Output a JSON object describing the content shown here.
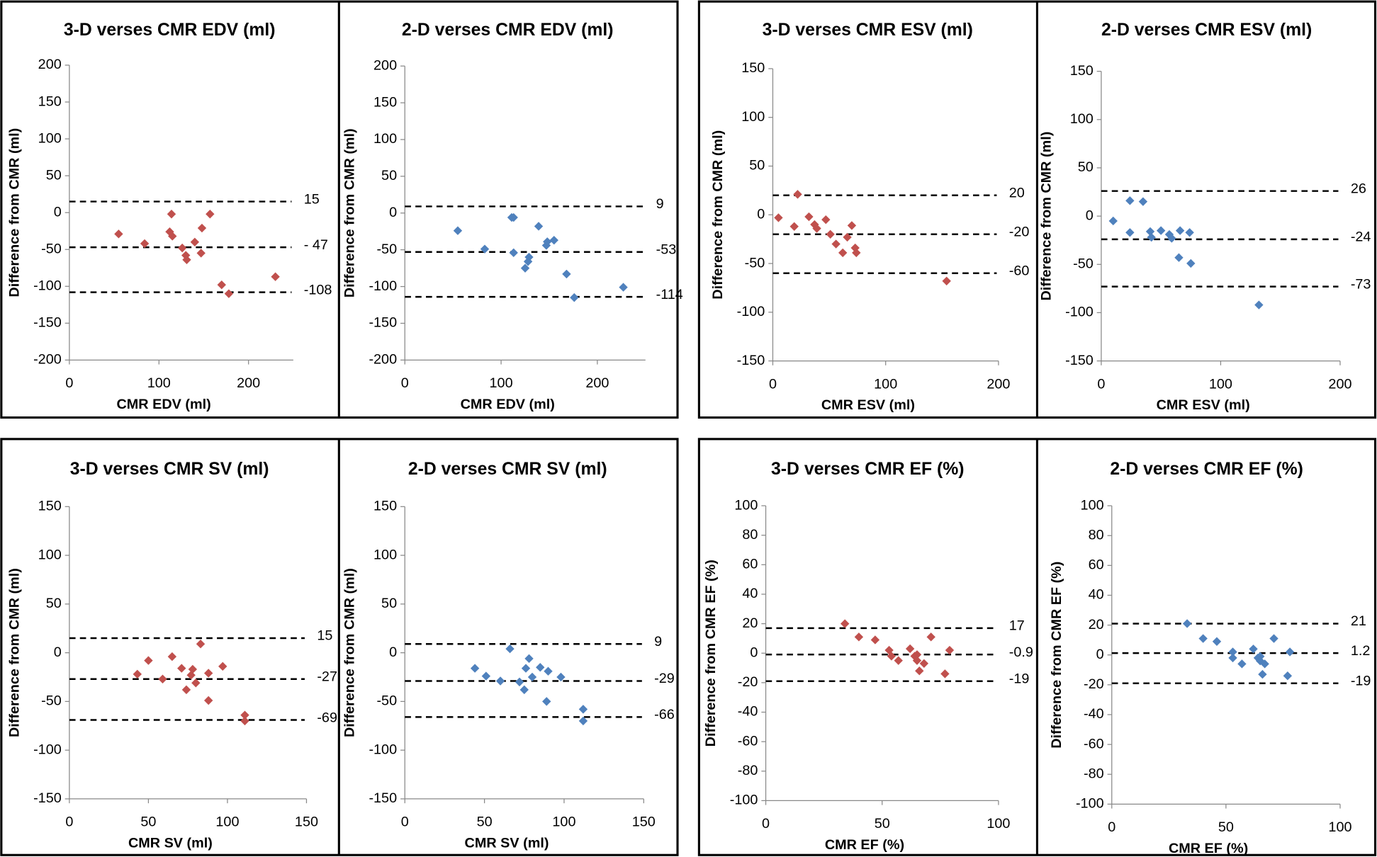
{
  "chart_data": [
    {
      "type": "scatter",
      "title": "3-D verses CMR EDV (ml)",
      "x_label": "CMR EDV (ml)",
      "y_label": "Difference from CMR (ml)",
      "color": "#c0504d",
      "xlim": [
        0,
        250
      ],
      "xticks": [
        0,
        100,
        200
      ],
      "ylim": [
        -200,
        200
      ],
      "yticks": [
        -200,
        -150,
        -100,
        -50,
        0,
        50,
        100,
        150,
        200
      ],
      "x": [
        55,
        84,
        114,
        112,
        115,
        126,
        130,
        131,
        140,
        147,
        148,
        157,
        170,
        178,
        230
      ],
      "values": [
        -29,
        -42,
        -2,
        -26,
        -32,
        -48,
        -58,
        -64,
        -40,
        -55,
        -21,
        -2,
        -98,
        -110,
        -87
      ],
      "hlines": [
        15,
        {
          "value": -47,
          "label": "- 47"
        },
        -108
      ]
    },
    {
      "type": "scatter",
      "title": "2-D verses CMR EDV (ml)",
      "x_label": "CMR EDV (ml)",
      "y_label": "Difference from CMR (ml)",
      "color": "#4f81bd",
      "xlim": [
        0,
        250
      ],
      "xticks": [
        0,
        100,
        200
      ],
      "ylim": [
        -200,
        200
      ],
      "yticks": [
        -200,
        -150,
        -100,
        -50,
        0,
        50,
        100,
        150,
        200
      ],
      "x": [
        55,
        83,
        111,
        113,
        113,
        125,
        128,
        129,
        139,
        147,
        148,
        155,
        168,
        176,
        227
      ],
      "values": [
        -24,
        -49,
        -6,
        -6,
        -54,
        -75,
        -66,
        -60,
        -18,
        -44,
        -39,
        -37,
        -83,
        -115,
        -101
      ],
      "hlines": [
        9,
        -53,
        -114
      ]
    },
    {
      "type": "scatter",
      "title": "3-D verses CMR ESV (ml)",
      "x_label": "CMR ESV (ml)",
      "y_label": "Difference from CMR (ml)",
      "color": "#c0504d",
      "xlim": [
        0,
        200
      ],
      "xticks": [
        0,
        100,
        200
      ],
      "ylim": [
        -150,
        150
      ],
      "yticks": [
        -150,
        -100,
        -50,
        0,
        50,
        100,
        150
      ],
      "x": [
        5,
        19,
        22,
        32,
        37,
        39,
        47,
        51,
        56,
        62,
        66,
        70,
        73,
        74,
        154
      ],
      "values": [
        -3,
        -12,
        21,
        -2,
        -10,
        -14,
        -5,
        -20,
        -30,
        -39,
        -23,
        -11,
        -34,
        -39,
        -68
      ],
      "hlines": [
        20,
        -20,
        -60
      ]
    },
    {
      "type": "scatter",
      "title": "2-D verses CMR ESV (ml)",
      "x_label": "CMR ESV (ml)",
      "y_label": "Difference from CMR (ml)",
      "color": "#4f81bd",
      "xlim": [
        0,
        200
      ],
      "xticks": [
        0,
        100,
        200
      ],
      "ylim": [
        -150,
        150
      ],
      "yticks": [
        -150,
        -100,
        -50,
        0,
        50,
        100,
        150
      ],
      "x": [
        10,
        24,
        24,
        35,
        41,
        42,
        50,
        57,
        59,
        66,
        65,
        74,
        75,
        132
      ],
      "values": [
        -5,
        16,
        -17,
        15,
        -16,
        -22,
        -15,
        -19,
        -23,
        -15,
        -43,
        -17,
        -49,
        -92
      ],
      "hlines": [
        26,
        -24,
        -73
      ]
    },
    {
      "type": "scatter",
      "title": "3-D verses CMR SV (ml)",
      "x_label": "CMR SV (ml)",
      "y_label": "Difference from CMR (ml)",
      "color": "#c0504d",
      "xlim": [
        0,
        150
      ],
      "xticks": [
        0,
        50,
        100,
        150
      ],
      "ylim": [
        -150,
        150
      ],
      "yticks": [
        -150,
        -100,
        -50,
        0,
        50,
        100,
        150
      ],
      "x": [
        43,
        50,
        59,
        65,
        71,
        74,
        77,
        78,
        80,
        83,
        88,
        88,
        97,
        111,
        111
      ],
      "values": [
        -22,
        -8,
        -27,
        -4,
        -16,
        -38,
        -23,
        -17,
        -31,
        9,
        -21,
        -49,
        -14,
        -64,
        -70
      ],
      "hlines": [
        15,
        -27,
        -69
      ]
    },
    {
      "type": "scatter",
      "title": "2-D verses CMR SV (ml)",
      "x_label": "CMR SV (ml)",
      "y_label": "Difference from CMR (ml)",
      "color": "#4f81bd",
      "xlim": [
        0,
        150
      ],
      "xticks": [
        0,
        50,
        100,
        150
      ],
      "ylim": [
        -150,
        150
      ],
      "yticks": [
        -150,
        -100,
        -50,
        0,
        50,
        100,
        150
      ],
      "x": [
        44,
        51,
        60,
        66,
        72,
        75,
        76,
        78,
        80,
        85,
        89,
        90,
        98,
        112,
        112
      ],
      "values": [
        -16,
        -24,
        -29,
        4,
        -30,
        -38,
        -16,
        -6,
        -25,
        -15,
        -50,
        -19,
        -25,
        -58,
        -70
      ],
      "hlines": [
        9,
        -29,
        -66
      ]
    },
    {
      "type": "scatter",
      "title": "3-D verses CMR EF (%)",
      "x_label": "CMR EF (%)",
      "y_label": "Difference from CMR EF (%)",
      "color": "#c0504d",
      "xlim": [
        0,
        100
      ],
      "xticks": [
        0,
        50,
        100
      ],
      "ylim": [
        -100,
        100
      ],
      "yticks": [
        -100,
        -80,
        -60,
        -40,
        -20,
        0,
        20,
        40,
        60,
        80,
        100
      ],
      "x": [
        34,
        40,
        47,
        53,
        54,
        57,
        62,
        64,
        65,
        65,
        66,
        68,
        71,
        77,
        79
      ],
      "values": [
        20,
        11,
        9,
        2,
        -2,
        -5,
        3,
        -2,
        -1,
        -5,
        -12,
        -7,
        11,
        -14,
        2
      ],
      "hlines": [
        17,
        -0.9,
        -19
      ]
    },
    {
      "type": "scatter",
      "title": "2-D verses CMR EF (%)",
      "x_label": "CMR EF (%)",
      "y_label": "Difference from CMR EF (%)",
      "color": "#4f81bd",
      "xlim": [
        0,
        100
      ],
      "xticks": [
        0,
        50,
        100
      ],
      "ylim": [
        -100,
        100
      ],
      "yticks": [
        -100,
        -80,
        -60,
        -40,
        -20,
        0,
        20,
        40,
        60,
        80,
        100
      ],
      "x": [
        33,
        40,
        46,
        53,
        53,
        57,
        62,
        64,
        65,
        65,
        66,
        67,
        71,
        77,
        78
      ],
      "values": [
        21,
        11,
        9,
        2,
        -2,
        -6,
        4,
        -2,
        -1,
        -4,
        -13,
        -6,
        11,
        -14,
        2
      ],
      "hlines": [
        21,
        1.2,
        -19
      ]
    }
  ]
}
